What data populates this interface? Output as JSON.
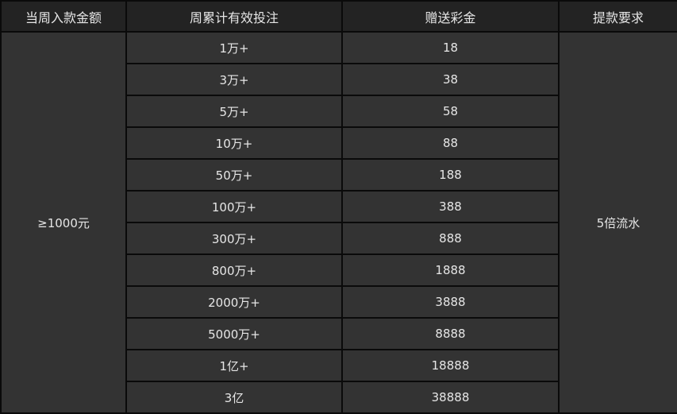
{
  "headers": [
    "当周入款金额",
    "周累计有效投注",
    "赠送彩金",
    "提款要求"
  ],
  "deposit": "≥1000元",
  "requirement": "5倍流水",
  "rows": [
    {
      "bet": "1万+",
      "bonus": "18"
    },
    {
      "bet": "3万+",
      "bonus": "38"
    },
    {
      "bet": "5万+",
      "bonus": "58"
    },
    {
      "bet": "10万+",
      "bonus": "88"
    },
    {
      "bet": "50万+",
      "bonus": "188"
    },
    {
      "bet": "100万+",
      "bonus": "388"
    },
    {
      "bet": "300万+",
      "bonus": "888"
    },
    {
      "bet": "800万+",
      "bonus": "1888"
    },
    {
      "bet": "2000万+",
      "bonus": "3888"
    },
    {
      "bet": "5000万+",
      "bonus": "8888"
    },
    {
      "bet": "1亿+",
      "bonus": "18888"
    },
    {
      "bet": "3亿",
      "bonus": "38888"
    }
  ]
}
